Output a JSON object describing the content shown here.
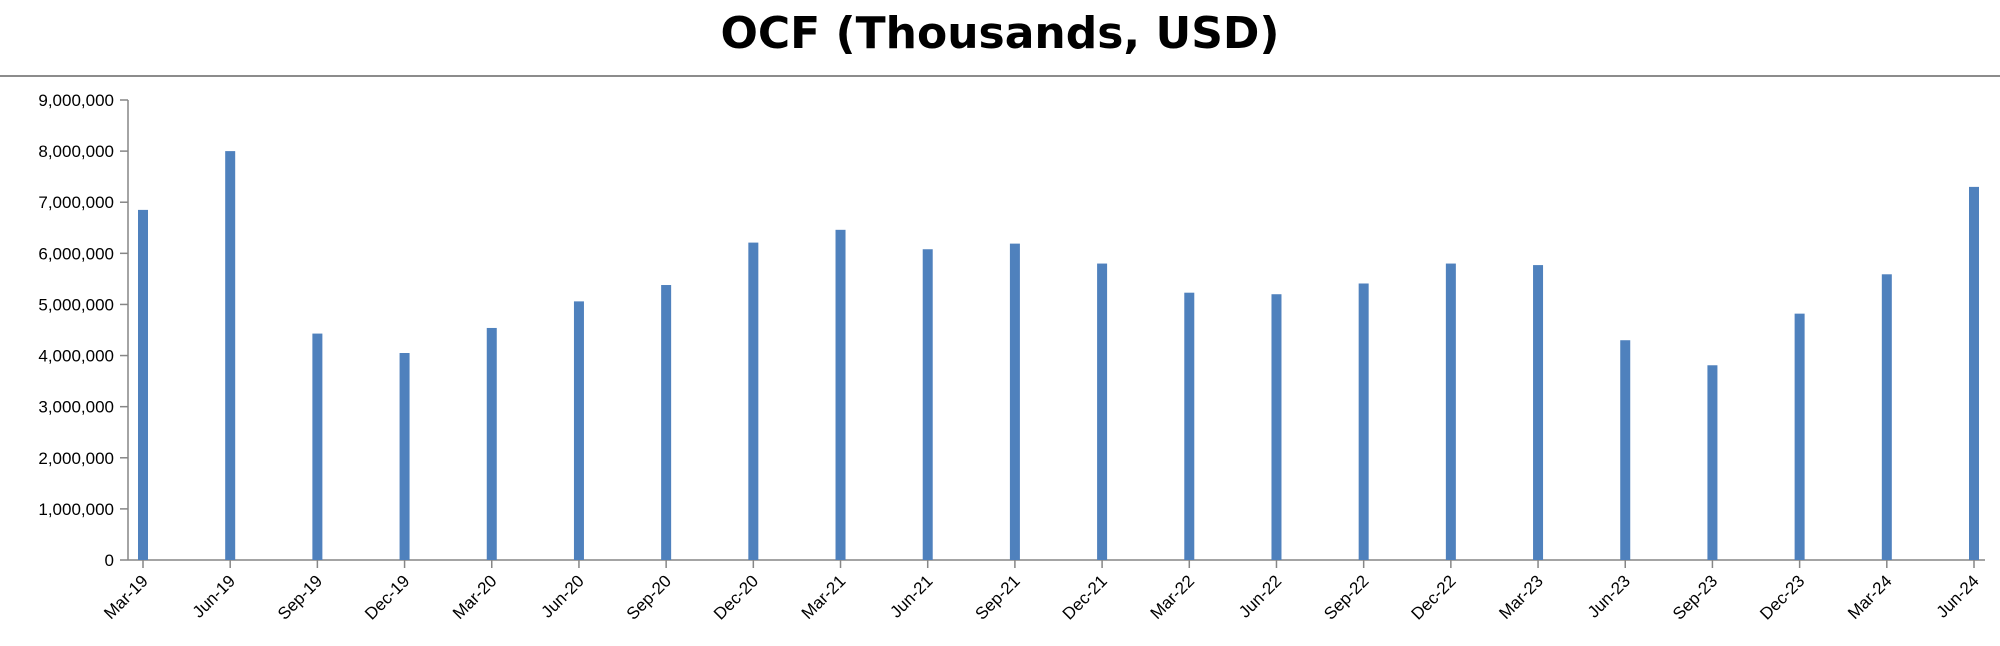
{
  "chart_data": {
    "type": "bar",
    "title": "OCF (Thousands, USD)",
    "xlabel": "",
    "ylabel": "",
    "categories": [
      "Mar-19",
      "Jun-19",
      "Sep-19",
      "Dec-19",
      "Mar-20",
      "Jun-20",
      "Sep-20",
      "Dec-20",
      "Mar-21",
      "Jun-21",
      "Sep-21",
      "Dec-21",
      "Mar-22",
      "Jun-22",
      "Sep-22",
      "Dec-22",
      "Mar-23",
      "Jun-23",
      "Sep-23",
      "Dec-23",
      "Mar-24",
      "Jun-24"
    ],
    "values": [
      6850000,
      8000000,
      4430000,
      4050000,
      4540000,
      5060000,
      5380000,
      6210000,
      6460000,
      6080000,
      6190000,
      5800000,
      5230000,
      5200000,
      5410000,
      5800000,
      5770000,
      4300000,
      3810000,
      4820000,
      5590000,
      7300000
    ],
    "ylim": [
      0,
      9000000
    ],
    "yticks": [
      0,
      1000000,
      2000000,
      3000000,
      4000000,
      5000000,
      6000000,
      7000000,
      8000000,
      9000000
    ],
    "ytick_labels": [
      "0",
      "1,000,000",
      "2,000,000",
      "3,000,000",
      "4,000,000",
      "5,000,000",
      "6,000,000",
      "7,000,000",
      "8,000,000",
      "9,000,000"
    ],
    "grid": false,
    "legend": "none",
    "bar_color": "#4f81bd"
  }
}
